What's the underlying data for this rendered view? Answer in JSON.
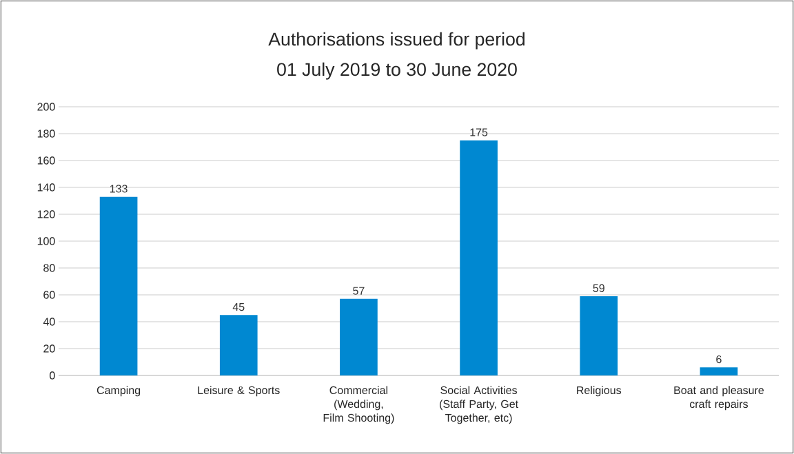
{
  "chart_data": {
    "type": "bar",
    "title": "Authorisations issued for period",
    "subtitle": "01 July 2019 to 30 June 2020",
    "categories": [
      "Camping",
      "Leisure & Sports",
      "Commercial (Wedding, Film Shooting)",
      "Social Activities (Staff Party, Get Together, etc)",
      "Religious",
      "Boat and pleasure craft repairs"
    ],
    "values": [
      133,
      45,
      57,
      175,
      59,
      6
    ],
    "color": "#0088d1",
    "ylim": [
      0,
      200
    ],
    "yticks": [
      0,
      20,
      40,
      60,
      80,
      100,
      120,
      140,
      160,
      180,
      200
    ],
    "grid": "y",
    "data_labels": true
  }
}
